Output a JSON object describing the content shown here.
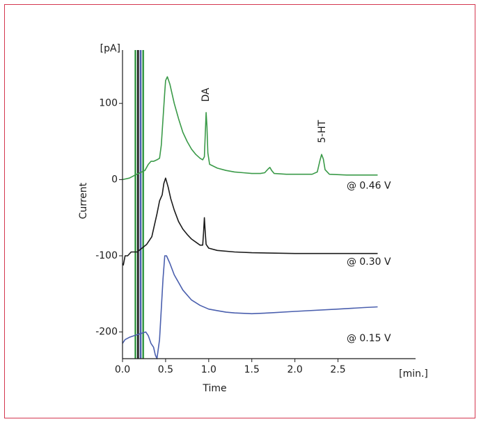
{
  "chart_data": {
    "type": "line",
    "xlabel": "Time",
    "ylabel": "Current",
    "x_unit": "[min.]",
    "y_unit": "[pA]",
    "xlim": [
      0,
      3.4
    ],
    "ylim": [
      -235,
      170
    ],
    "x_ticks": [
      {
        "value": 0,
        "label": "0.0"
      },
      {
        "value": 0.5,
        "label": "0.5"
      },
      {
        "value": 1.0,
        "label": "1.0"
      },
      {
        "value": 1.5,
        "label": "1.5"
      },
      {
        "value": 2.0,
        "label": "2.0"
      },
      {
        "value": 2.5,
        "label": "2.5"
      }
    ],
    "y_ticks": [
      {
        "value": 100,
        "label": "100"
      },
      {
        "value": 0,
        "label": "0"
      },
      {
        "value": -100,
        "label": "-100"
      },
      {
        "value": -200,
        "label": "-200"
      }
    ],
    "grid": false,
    "series": [
      {
        "name": "@ 0.46 V",
        "color": "#3a9a48",
        "points": [
          [
            0,
            0
          ],
          [
            0.08,
            2
          ],
          [
            0.13,
            5
          ],
          [
            0.26,
            12
          ],
          [
            0.3,
            20
          ],
          [
            0.33,
            24
          ],
          [
            0.36,
            24
          ],
          [
            0.4,
            26
          ],
          [
            0.43,
            28
          ],
          [
            0.45,
            45
          ],
          [
            0.47,
            80
          ],
          [
            0.49,
            115
          ],
          [
            0.5,
            130
          ],
          [
            0.52,
            135
          ],
          [
            0.55,
            125
          ],
          [
            0.6,
            100
          ],
          [
            0.65,
            80
          ],
          [
            0.7,
            62
          ],
          [
            0.75,
            50
          ],
          [
            0.8,
            40
          ],
          [
            0.85,
            33
          ],
          [
            0.9,
            28
          ],
          [
            0.93,
            26
          ],
          [
            0.95,
            30
          ],
          [
            0.96,
            60
          ],
          [
            0.97,
            88
          ],
          [
            0.98,
            70
          ],
          [
            0.99,
            35
          ],
          [
            1.01,
            20
          ],
          [
            1.1,
            15
          ],
          [
            1.2,
            12
          ],
          [
            1.3,
            10
          ],
          [
            1.4,
            9
          ],
          [
            1.5,
            8
          ],
          [
            1.6,
            8
          ],
          [
            1.65,
            9
          ],
          [
            1.69,
            14
          ],
          [
            1.71,
            16
          ],
          [
            1.73,
            12
          ],
          [
            1.76,
            8
          ],
          [
            1.9,
            7
          ],
          [
            2.0,
            7
          ],
          [
            2.1,
            7
          ],
          [
            2.2,
            7
          ],
          [
            2.26,
            10
          ],
          [
            2.29,
            25
          ],
          [
            2.31,
            33
          ],
          [
            2.33,
            27
          ],
          [
            2.35,
            13
          ],
          [
            2.4,
            7
          ],
          [
            2.6,
            6
          ],
          [
            2.8,
            6
          ],
          [
            2.96,
            6
          ]
        ],
        "label": {
          "text": "@ 0.46 V",
          "x": 2.6,
          "y": -12
        }
      },
      {
        "name": "@ 0.30 V",
        "color": "#1a1a1a",
        "points": [
          [
            0,
            -110
          ],
          [
            0.01,
            -112
          ],
          [
            0.03,
            -100
          ],
          [
            0.06,
            -100
          ],
          [
            0.1,
            -95
          ],
          [
            0.17,
            -95
          ],
          [
            0.28,
            -85
          ],
          [
            0.31,
            -80
          ],
          [
            0.34,
            -75
          ],
          [
            0.37,
            -60
          ],
          [
            0.4,
            -45
          ],
          [
            0.43,
            -28
          ],
          [
            0.46,
            -20
          ],
          [
            0.48,
            -5
          ],
          [
            0.5,
            2
          ],
          [
            0.53,
            -10
          ],
          [
            0.56,
            -25
          ],
          [
            0.6,
            -40
          ],
          [
            0.65,
            -55
          ],
          [
            0.7,
            -65
          ],
          [
            0.75,
            -72
          ],
          [
            0.8,
            -78
          ],
          [
            0.85,
            -82
          ],
          [
            0.9,
            -86
          ],
          [
            0.93,
            -86
          ],
          [
            0.94,
            -70
          ],
          [
            0.95,
            -50
          ],
          [
            0.96,
            -70
          ],
          [
            0.97,
            -85
          ],
          [
            1.0,
            -90
          ],
          [
            1.1,
            -93
          ],
          [
            1.3,
            -95
          ],
          [
            1.5,
            -96
          ],
          [
            2.0,
            -97
          ],
          [
            2.5,
            -97
          ],
          [
            2.96,
            -97
          ]
        ],
        "label": {
          "text": "@ 0.30 V",
          "x": 2.6,
          "y": -112
        }
      },
      {
        "name": "@ 0.15 V",
        "color": "#4a5fae",
        "points": [
          [
            0,
            -215
          ],
          [
            0.03,
            -210
          ],
          [
            0.08,
            -207
          ],
          [
            0.13,
            -205
          ],
          [
            0.27,
            -200
          ],
          [
            0.3,
            -205
          ],
          [
            0.33,
            -215
          ],
          [
            0.36,
            -220
          ],
          [
            0.38,
            -230
          ],
          [
            0.4,
            -235
          ],
          [
            0.43,
            -210
          ],
          [
            0.45,
            -170
          ],
          [
            0.47,
            -130
          ],
          [
            0.49,
            -100
          ],
          [
            0.51,
            -100
          ],
          [
            0.55,
            -110
          ],
          [
            0.6,
            -125
          ],
          [
            0.7,
            -145
          ],
          [
            0.8,
            -158
          ],
          [
            0.9,
            -165
          ],
          [
            1.0,
            -170
          ],
          [
            1.1,
            -172
          ],
          [
            1.2,
            -174
          ],
          [
            1.3,
            -175
          ],
          [
            1.5,
            -176
          ],
          [
            1.7,
            -175
          ],
          [
            2.0,
            -173
          ],
          [
            2.5,
            -170
          ],
          [
            2.8,
            -168
          ],
          [
            2.96,
            -167
          ]
        ],
        "label": {
          "text": "@ 0.15 V",
          "x": 2.6,
          "y": -212
        }
      }
    ],
    "injection_spikes": [
      {
        "x": 0.15,
        "color": "#3a9a48"
      },
      {
        "x": 0.18,
        "color": "#1a1a1a"
      },
      {
        "x": 0.21,
        "color": "#4a5fae"
      },
      {
        "x": 0.24,
        "color": "#3a9a48"
      }
    ],
    "annotations": [
      {
        "text": "DA",
        "x": 0.96,
        "y": 102
      },
      {
        "text": "5-HT",
        "x": 2.31,
        "y": 48
      }
    ]
  }
}
